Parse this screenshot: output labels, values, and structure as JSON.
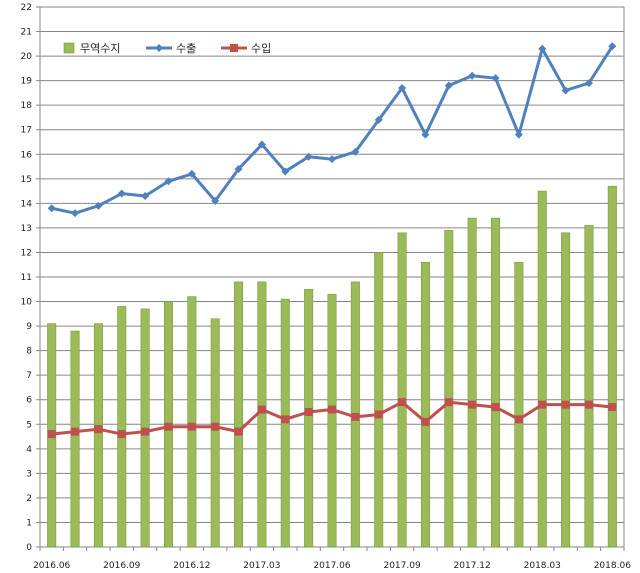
{
  "chart_data": {
    "type": "bar+line",
    "title": "",
    "xlabel": "",
    "ylabel": "",
    "ylim": [
      0,
      22
    ],
    "ytick_step": 1,
    "grid": true,
    "legend_position": "top-left",
    "categories": [
      "2016.06",
      "2016.07",
      "2016.08",
      "2016.09",
      "2016.10",
      "2016.11",
      "2016.12",
      "2017.01",
      "2017.02",
      "2017.03",
      "2017.04",
      "2017.05",
      "2017.06",
      "2017.07",
      "2017.08",
      "2017.09",
      "2017.10",
      "2017.11",
      "2017.12",
      "2018.01",
      "2018.02",
      "2018.03",
      "2018.04",
      "2018.05",
      "2018.06"
    ],
    "x_tick_labels": [
      "2016.06",
      "2016.09",
      "2016.12",
      "2017.03",
      "2017.06",
      "2017.09",
      "2017.12",
      "2018.03",
      "2018.06"
    ],
    "series": [
      {
        "name": "무역수지",
        "kind": "bar",
        "color": "#9BBB59",
        "values": [
          9.1,
          8.8,
          9.1,
          9.8,
          9.7,
          10.0,
          10.2,
          9.3,
          10.8,
          10.8,
          10.1,
          10.5,
          10.3,
          10.8,
          12.0,
          12.8,
          11.6,
          12.9,
          13.4,
          13.4,
          11.6,
          14.5,
          12.8,
          13.1,
          14.7
        ]
      },
      {
        "name": "수출",
        "kind": "line",
        "color": "#4F81BD",
        "marker": "diamond",
        "values": [
          13.8,
          13.6,
          13.9,
          14.4,
          14.3,
          14.9,
          15.2,
          14.1,
          15.4,
          16.4,
          15.3,
          15.9,
          15.8,
          16.1,
          17.4,
          18.7,
          16.8,
          18.8,
          19.2,
          19.1,
          16.8,
          20.3,
          18.6,
          18.9,
          20.4
        ]
      },
      {
        "name": "수입",
        "kind": "line",
        "color": "#C0504D",
        "marker": "square",
        "values": [
          4.6,
          4.7,
          4.8,
          4.6,
          4.7,
          4.9,
          4.9,
          4.9,
          4.7,
          5.6,
          5.2,
          5.5,
          5.6,
          5.3,
          5.4,
          5.9,
          5.1,
          5.9,
          5.8,
          5.7,
          5.2,
          5.8,
          5.8,
          5.8,
          5.7
        ]
      }
    ]
  }
}
